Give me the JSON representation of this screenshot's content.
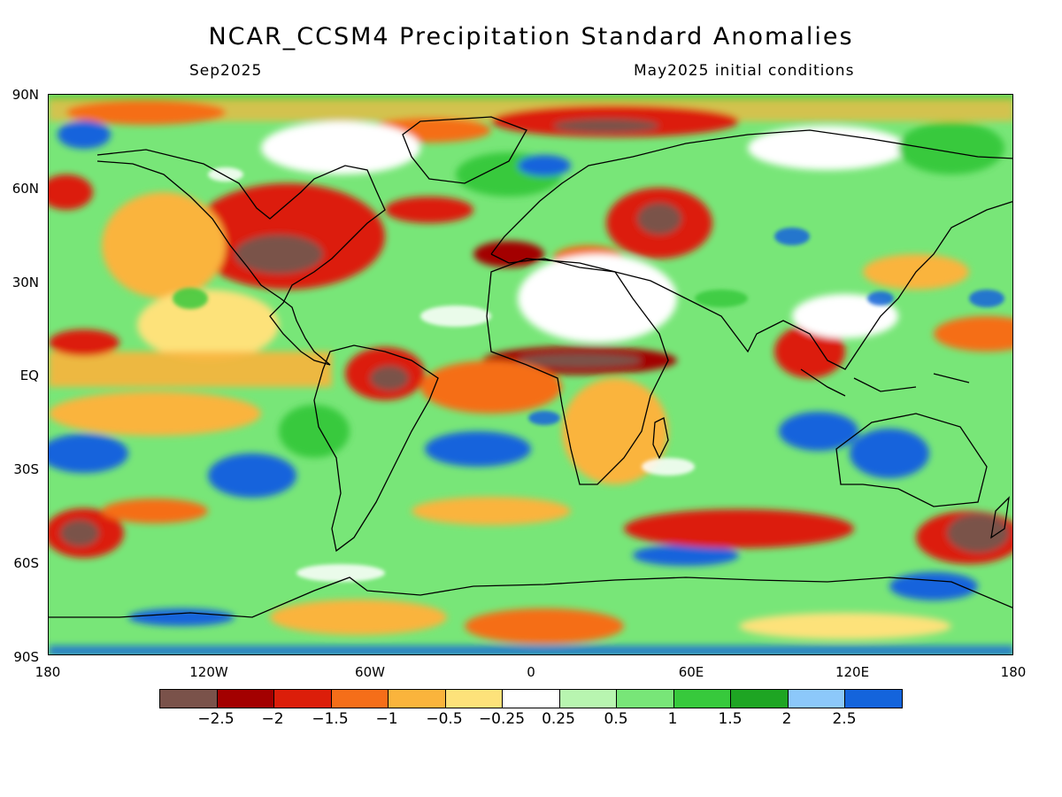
{
  "title": "NCAR_CCSM4 Precipitation Standard Anomalies",
  "valid_label": "Sep2025",
  "init_label": "May2025 initial conditions",
  "lat_ticks": [
    "90N",
    "60N",
    "30N",
    "EQ",
    "30S",
    "60S",
    "90S"
  ],
  "lon_ticks": [
    "180",
    "120W",
    "60W",
    "0",
    "60E",
    "120E",
    "180"
  ],
  "colorbar": {
    "colors": [
      "#7a524a",
      "#a30000",
      "#dc1e0a",
      "#f56e19",
      "#fab43c",
      "#fde27a",
      "#ffffff",
      "#b8f5b0",
      "#78e678",
      "#37c93c",
      "#1ea523",
      "#8cc8fa",
      "#1464dc"
    ],
    "labels": [
      "−2.5",
      "−2",
      "−1.5",
      "−1",
      "−0.5",
      "−0.25",
      "0.25",
      "0.5",
      "1",
      "1.5",
      "2",
      "2.5"
    ]
  }
}
